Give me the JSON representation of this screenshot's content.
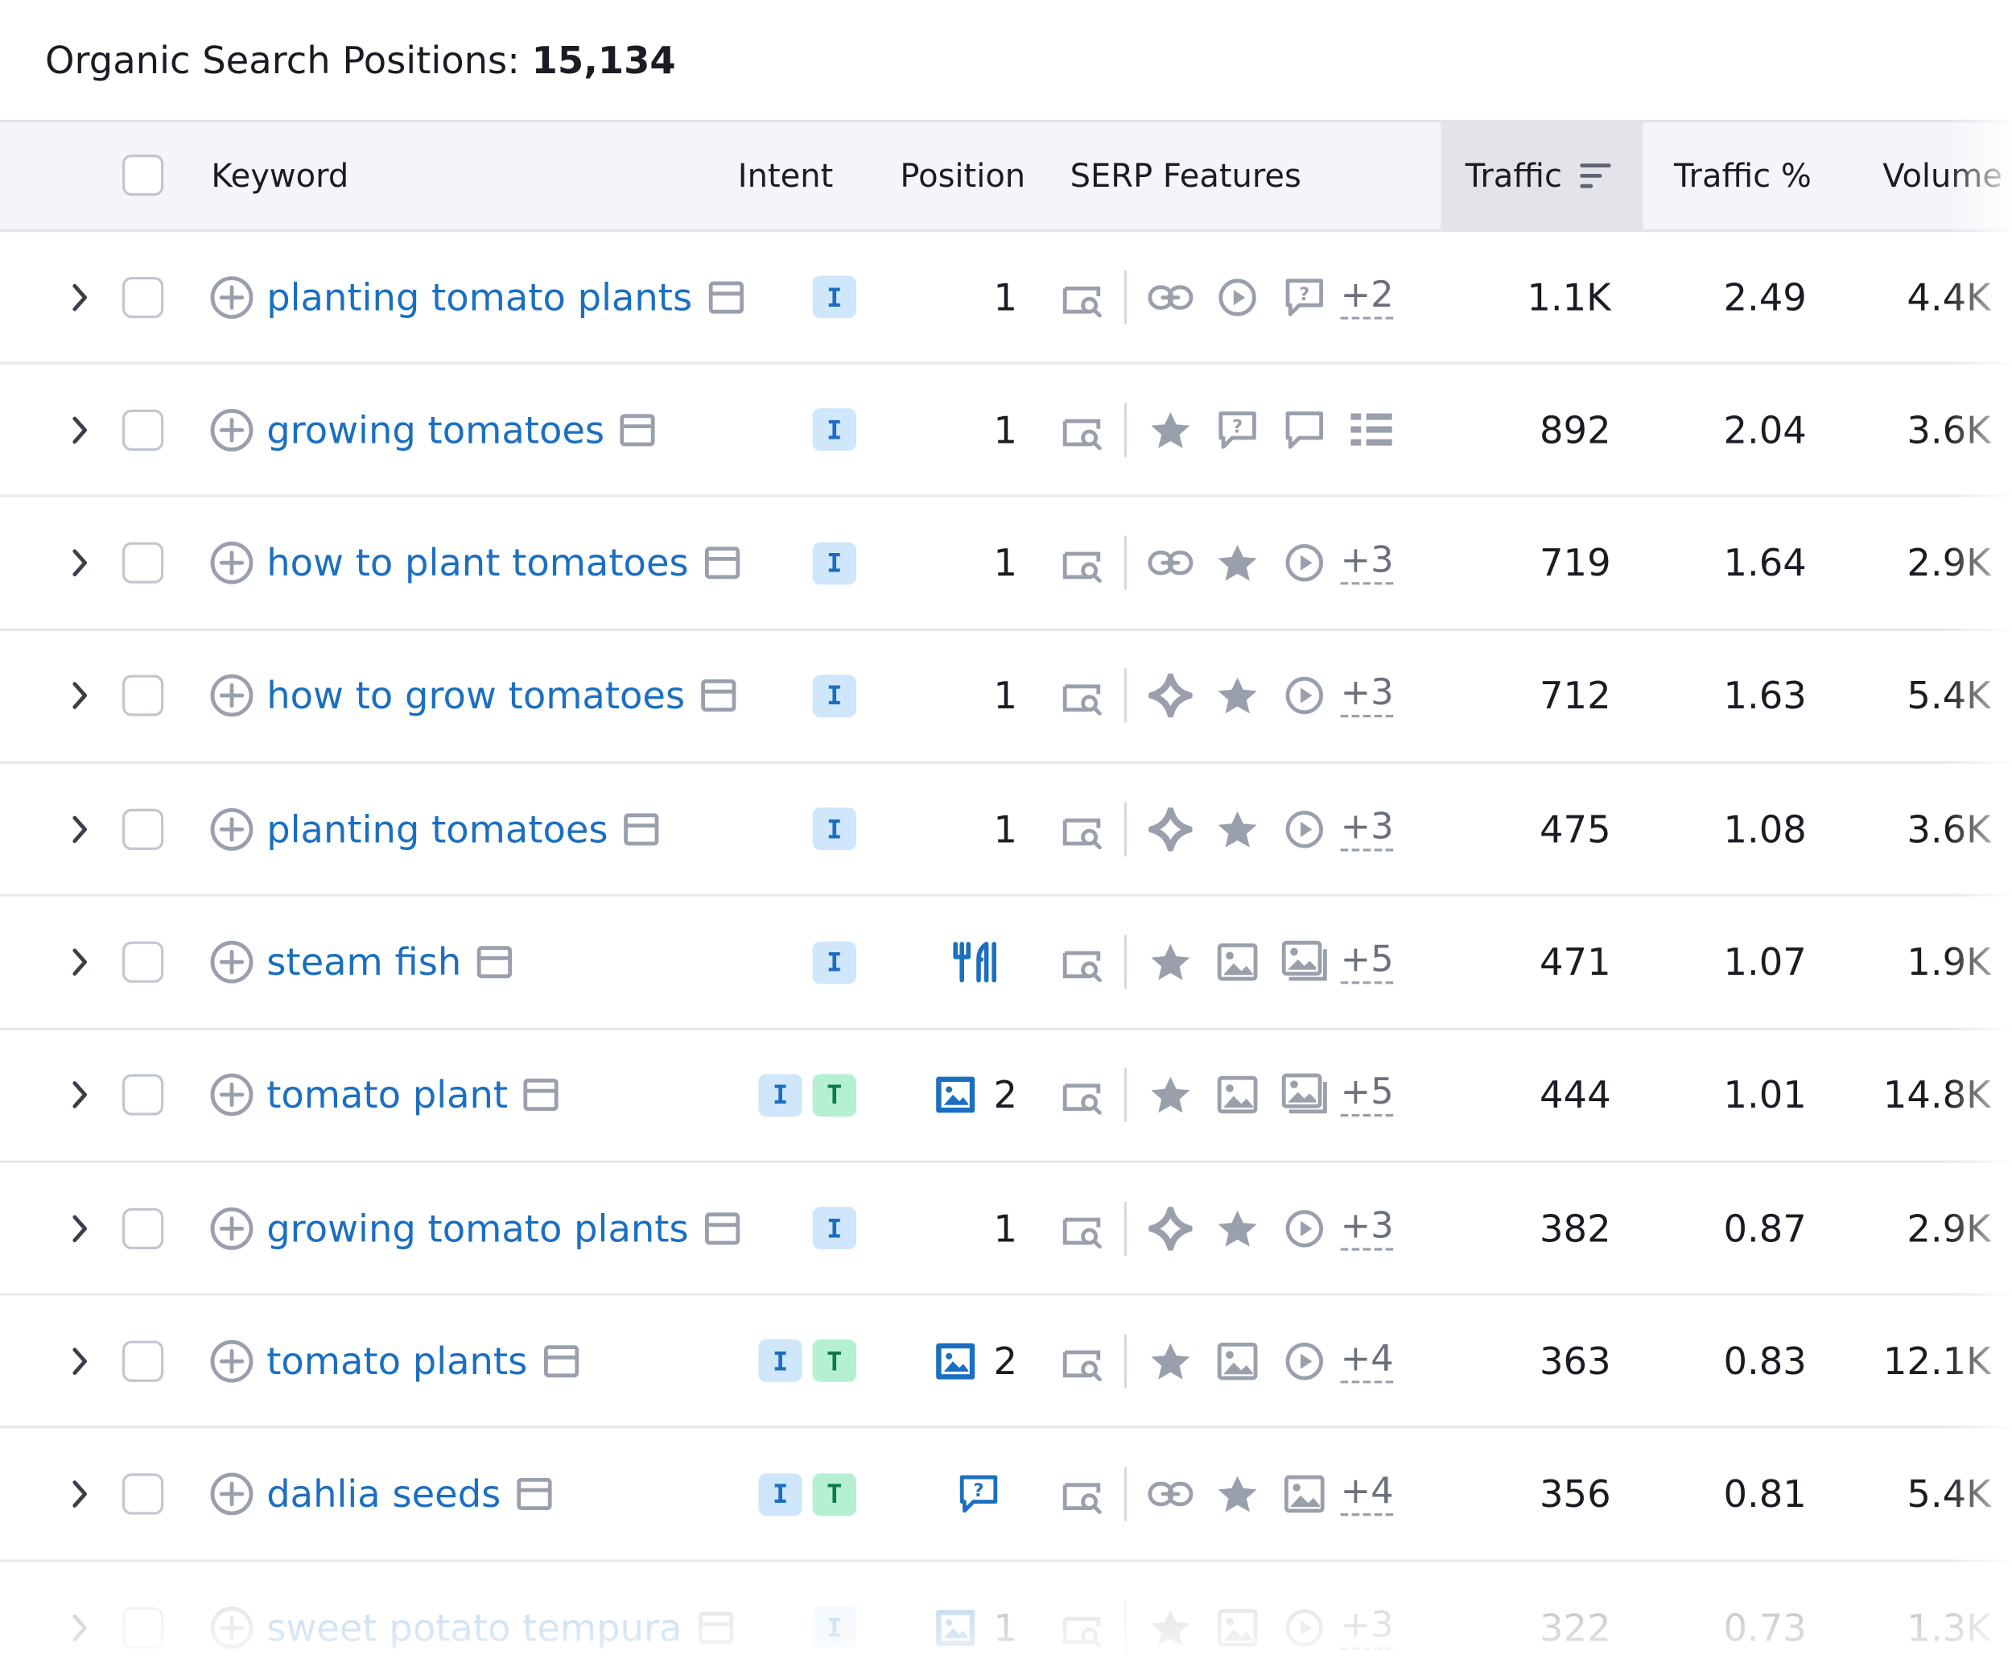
{
  "header": {
    "title_label": "Organic Search Positions:",
    "title_count": "15,134"
  },
  "columns": {
    "keyword": "Keyword",
    "intent": "Intent",
    "position": "Position",
    "serp_features": "SERP Features",
    "traffic": "Traffic",
    "traffic_pct": "Traffic %",
    "volume": "Volume"
  },
  "rows": [
    {
      "keyword": "planting tomato plants",
      "intent": [
        "I"
      ],
      "position": "1",
      "position_icon": "",
      "serp": [
        "link-icon",
        "video-icon",
        "faq-icon"
      ],
      "more": "+2",
      "traffic": "1.1K",
      "traffic_pct": "2.49",
      "volume": "4.4K"
    },
    {
      "keyword": "growing tomatoes",
      "intent": [
        "I"
      ],
      "position": "1",
      "position_icon": "",
      "serp": [
        "star-icon",
        "faq-icon",
        "comment-icon",
        "list-icon"
      ],
      "more": "",
      "traffic": "892",
      "traffic_pct": "2.04",
      "volume": "3.6K"
    },
    {
      "keyword": "how to plant tomatoes",
      "intent": [
        "I"
      ],
      "position": "1",
      "position_icon": "",
      "serp": [
        "link-icon",
        "star-icon",
        "video-icon"
      ],
      "more": "+3",
      "traffic": "719",
      "traffic_pct": "1.64",
      "volume": "2.9K"
    },
    {
      "keyword": "how to grow tomatoes",
      "intent": [
        "I"
      ],
      "position": "1",
      "position_icon": "",
      "serp": [
        "ai-overview-icon",
        "star-icon",
        "video-icon"
      ],
      "more": "+3",
      "traffic": "712",
      "traffic_pct": "1.63",
      "volume": "5.4K"
    },
    {
      "keyword": "planting tomatoes",
      "intent": [
        "I"
      ],
      "position": "1",
      "position_icon": "",
      "serp": [
        "ai-overview-icon",
        "star-icon",
        "video-icon"
      ],
      "more": "+3",
      "traffic": "475",
      "traffic_pct": "1.08",
      "volume": "3.6K"
    },
    {
      "keyword": "steam fish",
      "intent": [
        "I"
      ],
      "position": "",
      "position_icon": "recipe-icon",
      "serp": [
        "star-icon",
        "image-icon",
        "image-pack-icon"
      ],
      "more": "+5",
      "traffic": "471",
      "traffic_pct": "1.07",
      "volume": "1.9K"
    },
    {
      "keyword": "tomato plant",
      "intent": [
        "I",
        "T"
      ],
      "position": "2",
      "position_icon": "image-icon",
      "serp": [
        "star-icon",
        "image-icon",
        "image-pack-icon"
      ],
      "more": "+5",
      "traffic": "444",
      "traffic_pct": "1.01",
      "volume": "14.8K"
    },
    {
      "keyword": "growing tomato plants",
      "intent": [
        "I"
      ],
      "position": "1",
      "position_icon": "",
      "serp": [
        "ai-overview-icon",
        "star-icon",
        "video-icon"
      ],
      "more": "+3",
      "traffic": "382",
      "traffic_pct": "0.87",
      "volume": "2.9K"
    },
    {
      "keyword": "tomato plants",
      "intent": [
        "I",
        "T"
      ],
      "position": "2",
      "position_icon": "image-icon",
      "serp": [
        "star-icon",
        "image-icon",
        "video-icon"
      ],
      "more": "+4",
      "traffic": "363",
      "traffic_pct": "0.83",
      "volume": "12.1K"
    },
    {
      "keyword": "dahlia seeds",
      "intent": [
        "I",
        "T"
      ],
      "position": "",
      "position_icon": "faq-icon",
      "serp": [
        "link-icon",
        "star-icon",
        "image-icon"
      ],
      "more": "+4",
      "traffic": "356",
      "traffic_pct": "0.81",
      "volume": "5.4K"
    },
    {
      "keyword": "sweet potato tempura",
      "intent": [
        "I"
      ],
      "position": "1",
      "position_icon": "image-icon",
      "serp": [
        "star-icon",
        "image-icon",
        "video-icon"
      ],
      "more": "+3",
      "traffic": "322",
      "traffic_pct": "0.73",
      "volume": "1.3K"
    }
  ],
  "colors": {
    "link": "#1b6fc1",
    "intent_i_bg": "#cfe6fb",
    "intent_t_bg": "#b5f0d2",
    "header_bg": "#f4f5f9",
    "sorted_col_bg": "#e2e4ea",
    "icon_gray": "#9aa0ab"
  }
}
